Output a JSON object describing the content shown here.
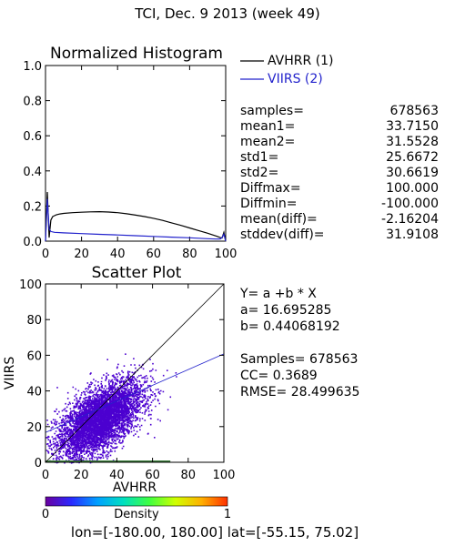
{
  "page_title": "TCI,  Dec. 9 2013 (week 49)",
  "footer": "lon=[-180.00, 180.00] lat=[-55.15, 75.02]",
  "colors": {
    "avhrr": "#000000",
    "viirs": "#2222cc",
    "scatter": "#4b00d0",
    "axes": "#000000"
  },
  "histogram": {
    "legend": [
      {
        "label": "AVHRR (1)",
        "color": "#000000"
      },
      {
        "label": "VIIRS (2)",
        "color": "#2222cc"
      }
    ],
    "stats": [
      {
        "key": "samples=",
        "value": "678563"
      },
      {
        "key": "mean1=",
        "value": "33.7150"
      },
      {
        "key": "mean2=",
        "value": "31.5528"
      },
      {
        "key": "std1=",
        "value": "25.6672"
      },
      {
        "key": "std2=",
        "value": "30.6619"
      },
      {
        "key": "Diffmax=",
        "value": "100.000"
      },
      {
        "key": "Diffmin=",
        "value": "-100.000"
      },
      {
        "key": "mean(diff)=",
        "value": "-2.16204"
      },
      {
        "key": "stddev(diff)=",
        "value": "31.9108"
      }
    ]
  },
  "scatter": {
    "fit_lines": [
      "Y= a +b * X",
      "a= 16.695285",
      "b= 0.44068192"
    ],
    "stat_lines": [
      "Samples= 678563",
      "CC=  0.3689",
      "RMSE= 28.499635"
    ]
  },
  "colorbar": {
    "label": "Density",
    "min_label": "0",
    "max_label": "1",
    "stops": [
      "#6a00a0",
      "#2a2aff",
      "#00a0ff",
      "#00e0c0",
      "#40ff40",
      "#d0ff00",
      "#ffb000",
      "#ff3000"
    ]
  },
  "chart_data": [
    {
      "type": "line",
      "title": "Normalized Histogram",
      "xlim": [
        0,
        100
      ],
      "ylim": [
        0,
        1
      ],
      "xticks": [
        "0",
        "20",
        "40",
        "60",
        "80",
        "100"
      ],
      "yticks": [
        "0.0",
        "0.2",
        "0.4",
        "0.6",
        "0.8",
        "1.0"
      ],
      "series": [
        {
          "name": "AVHRR (1)",
          "color": "#000000",
          "x": [
            0,
            1,
            2,
            3,
            4,
            5,
            6,
            8,
            10,
            15,
            20,
            25,
            30,
            35,
            40,
            45,
            50,
            55,
            60,
            65,
            70,
            75,
            80,
            85,
            90,
            95,
            97,
            98,
            99,
            100
          ],
          "y": [
            0.0,
            0.28,
            0.02,
            0.12,
            0.14,
            0.145,
            0.15,
            0.155,
            0.158,
            0.162,
            0.165,
            0.167,
            0.168,
            0.166,
            0.162,
            0.156,
            0.148,
            0.14,
            0.13,
            0.118,
            0.104,
            0.09,
            0.075,
            0.06,
            0.045,
            0.028,
            0.02,
            0.018,
            0.05,
            0.0
          ]
        },
        {
          "name": "VIIRS (2)",
          "color": "#2222cc",
          "x": [
            0,
            1,
            2,
            3,
            5,
            10,
            20,
            30,
            40,
            50,
            60,
            70,
            80,
            90,
            95,
            97,
            98,
            99,
            100
          ],
          "y": [
            0.0,
            0.24,
            0.07,
            0.055,
            0.05,
            0.047,
            0.043,
            0.039,
            0.035,
            0.031,
            0.027,
            0.023,
            0.019,
            0.014,
            0.012,
            0.013,
            0.02,
            0.04,
            0.0
          ]
        }
      ]
    },
    {
      "type": "scatter",
      "title": "Scatter Plot",
      "xlabel": "AVHRR",
      "ylabel": "VIIRS",
      "xlim": [
        0,
        100
      ],
      "ylim": [
        0,
        100
      ],
      "xticks": [
        "0",
        "20",
        "40",
        "60",
        "80",
        "100"
      ],
      "yticks": [
        "0",
        "20",
        "40",
        "60",
        "80",
        "100"
      ],
      "fit": {
        "a": 16.695285,
        "b": 0.44068192
      },
      "reference_line": "y=x",
      "density_center": [
        30,
        24
      ],
      "density_spread": [
        12,
        11
      ],
      "density_correlation": 0.6
    }
  ]
}
